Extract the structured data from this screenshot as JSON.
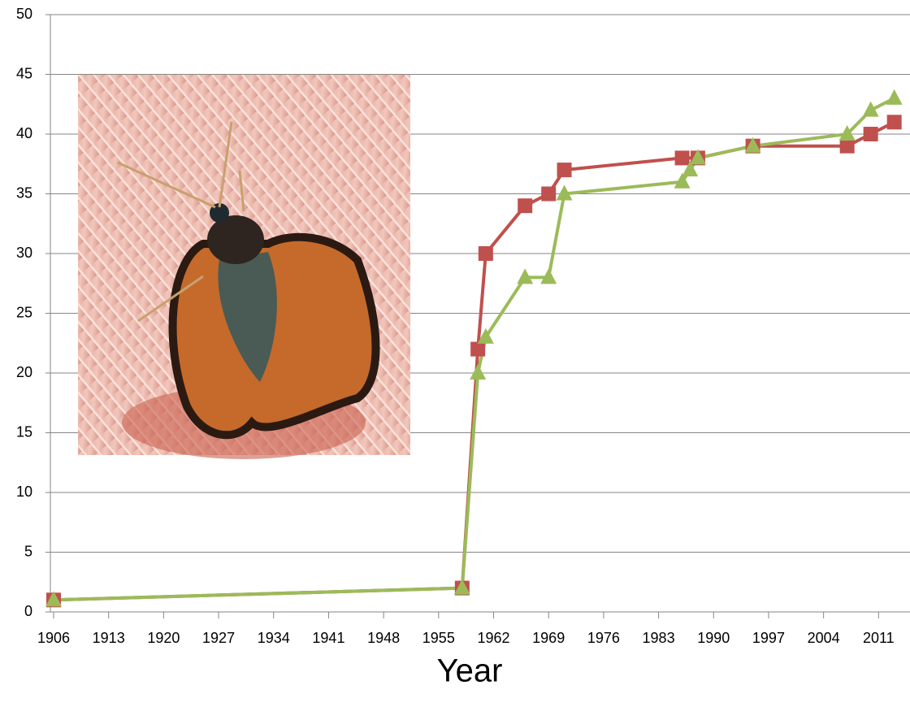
{
  "chart_data": {
    "type": "line",
    "x_label": "Year",
    "xlim": [
      1906,
      2015
    ],
    "xticks": [
      1906,
      1913,
      1920,
      1927,
      1934,
      1941,
      1948,
      1955,
      1962,
      1969,
      1976,
      1983,
      1990,
      1997,
      2004,
      2011
    ],
    "ylim": [
      0,
      50
    ],
    "yticks": [
      0,
      5,
      10,
      15,
      20,
      25,
      30,
      35,
      40,
      45,
      50
    ],
    "grid": true,
    "series": [
      {
        "color": "#c0504d",
        "marker": "square",
        "x": [
          1906,
          1958,
          1960,
          1961,
          1966,
          1969,
          1971,
          1986,
          1988,
          1995,
          2007,
          2010,
          2013
        ],
        "values": [
          1,
          2,
          22,
          30,
          34,
          35,
          37,
          38,
          38,
          39,
          39,
          40,
          41
        ]
      },
      {
        "color": "#9bbb59",
        "marker": "triangle",
        "x": [
          1906,
          1958,
          1960,
          1961,
          1966,
          1969,
          1971,
          1986,
          1987,
          1988,
          1995,
          2007,
          2010,
          2013
        ],
        "values": [
          1,
          2,
          20,
          23,
          28,
          28,
          35,
          36,
          37,
          38,
          39,
          40,
          42,
          43
        ]
      }
    ]
  }
}
